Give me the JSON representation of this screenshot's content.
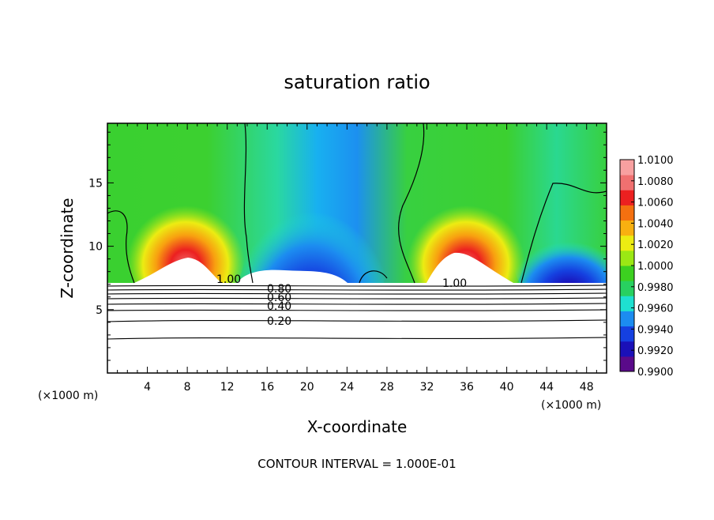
{
  "chart_data": {
    "type": "heatmap",
    "title": "saturation ratio",
    "xlabel": "X-coordinate",
    "ylabel": "Z-coordinate",
    "x_unit": "(×1000 m)",
    "y_unit": "(×1000 m)",
    "xlim": [
      0,
      50
    ],
    "ylim": [
      0,
      19.7
    ],
    "x_ticks": [
      4,
      8,
      12,
      16,
      20,
      24,
      28,
      32,
      36,
      40,
      44,
      48
    ],
    "y_ticks": [
      5,
      10,
      15
    ],
    "colorbar": {
      "min": 0.99,
      "max": 1.01,
      "ticks": [
        "0.9900",
        "0.9920",
        "0.9940",
        "0.9960",
        "0.9980",
        "1.0000",
        "1.0020",
        "1.0040",
        "1.0060",
        "1.0080",
        "1.0100"
      ],
      "colors": [
        "#5a0a8a",
        "#1a10b8",
        "#1540e0",
        "#1c8cf0",
        "#1ee0d0",
        "#28d060",
        "#3cd020",
        "#9be814",
        "#ecec12",
        "#f8b010",
        "#f47010",
        "#ec2020",
        "#f07070",
        "#f8a0a0"
      ]
    },
    "contour_labels": [
      "1.00",
      "0.80",
      "0.60",
      "0.40",
      "0.20",
      "1.00"
    ],
    "contour_interval_text": "CONTOUR INTERVAL = 1.000E-01",
    "grid": false
  }
}
